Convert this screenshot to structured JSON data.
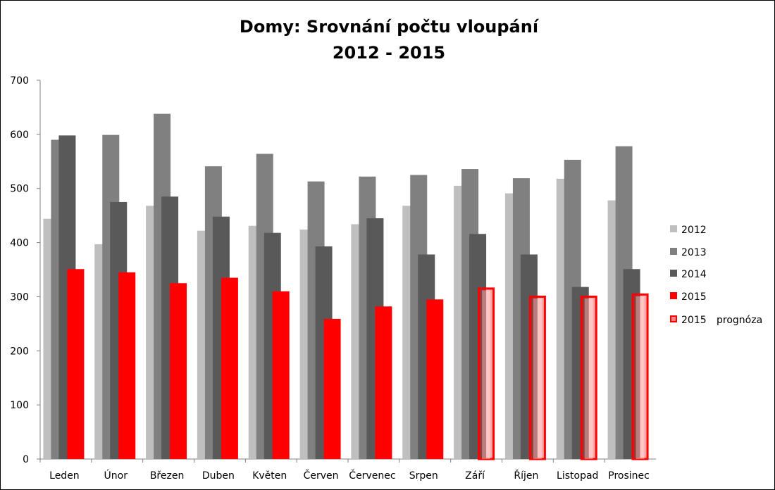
{
  "chart_data": {
    "type": "bar",
    "title": "Domy: Srovnání počtu vloupání",
    "subtitle": "2012 - 2015",
    "categories": [
      "Leden",
      "Únor",
      "Březen",
      "Duben",
      "Květen",
      "Červen",
      "Červenec",
      "Srpen",
      "Září",
      "Říjen",
      "Listopad",
      "Prosinec"
    ],
    "ylim": [
      0,
      700
    ],
    "yticks": [
      0,
      100,
      200,
      300,
      400,
      500,
      600,
      700
    ],
    "series": [
      {
        "name": "2012",
        "color": "#bfbfbf",
        "values": [
          444,
          397,
          468,
          422,
          431,
          424,
          434,
          468,
          505,
          491,
          518,
          478
        ]
      },
      {
        "name": "2013",
        "color": "#808080",
        "values": [
          590,
          599,
          638,
          541,
          564,
          513,
          522,
          525,
          536,
          519,
          553,
          578
        ]
      },
      {
        "name": "2014",
        "color": "#595959",
        "values": [
          598,
          475,
          485,
          448,
          418,
          393,
          445,
          378,
          416,
          378,
          318,
          351
        ]
      },
      {
        "name": "2015",
        "color": "#ff0000",
        "values": [
          351,
          345,
          325,
          335,
          310,
          259,
          282,
          295,
          null,
          null,
          null,
          null
        ]
      },
      {
        "name": "2015",
        "color": "#ff0000",
        "forecast": true,
        "values": [
          null,
          null,
          null,
          null,
          null,
          null,
          null,
          null,
          317,
          302,
          302,
          306
        ]
      }
    ],
    "legend": {
      "position": "right",
      "entries": [
        "2012",
        "2013",
        "2014",
        "2015",
        "2015"
      ],
      "forecast_suffix": "prognóza"
    },
    "grid": false
  }
}
